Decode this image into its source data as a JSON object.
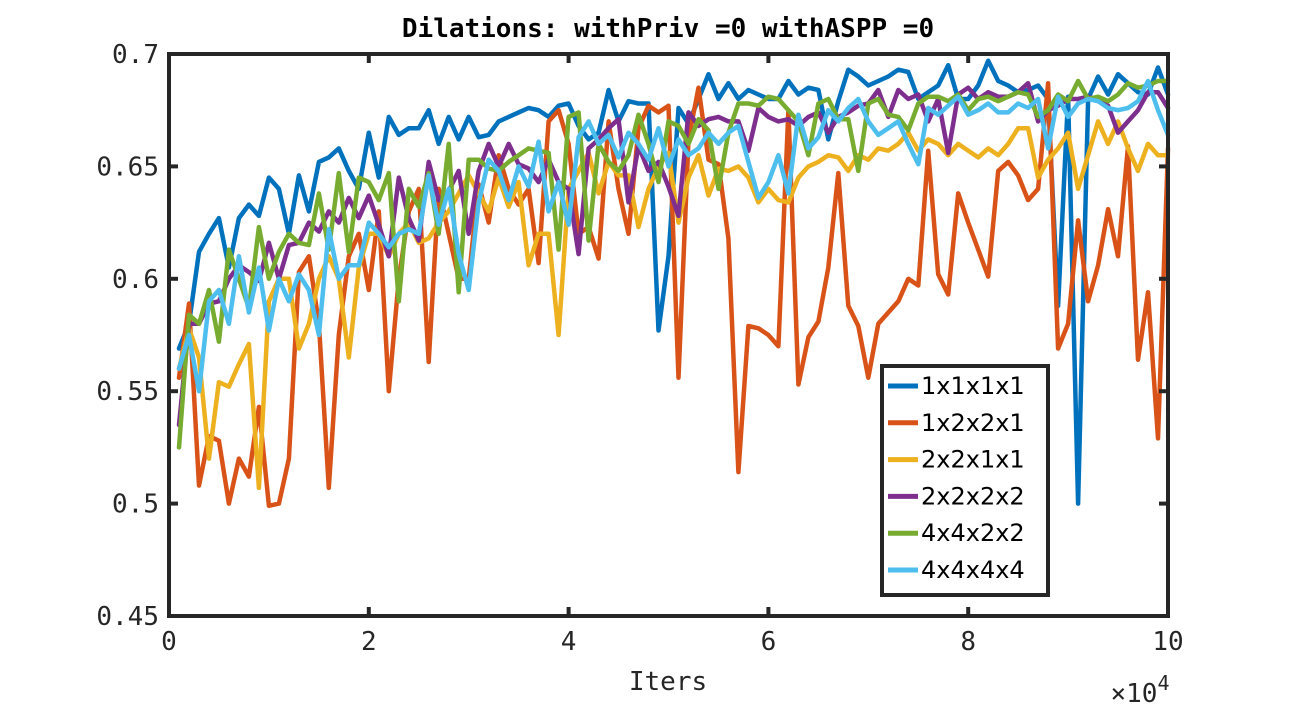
{
  "chart_data": {
    "type": "line",
    "title": "Dilations: withPriv =0 withASPP =0",
    "xlabel": "Iters",
    "ylabel": "",
    "x_multiplier": "×10",
    "x_multiplier_exp": "4",
    "xlim": [
      0,
      100000
    ],
    "ylim": [
      0.45,
      0.7
    ],
    "xticks": [
      0,
      20000,
      40000,
      60000,
      80000,
      100000
    ],
    "xtick_labels": [
      "0",
      "2",
      "4",
      "6",
      "8",
      "10"
    ],
    "yticks": [
      0.45,
      0.5,
      0.55,
      0.6,
      0.65,
      0.7
    ],
    "ytick_labels": [
      "0.45",
      "0.5",
      "0.55",
      "0.6",
      "0.65",
      "0.7"
    ],
    "grid": false,
    "legend_position": "bottom-right-inside",
    "x": [
      1000,
      2000,
      3000,
      4000,
      5000,
      6000,
      7000,
      8000,
      9000,
      10000,
      11000,
      12000,
      13000,
      14000,
      15000,
      16000,
      17000,
      18000,
      19000,
      20000,
      21000,
      22000,
      23000,
      24000,
      25000,
      26000,
      27000,
      28000,
      29000,
      30000,
      31000,
      32000,
      33000,
      34000,
      35000,
      36000,
      37000,
      38000,
      39000,
      40000,
      41000,
      42000,
      43000,
      44000,
      45000,
      46000,
      47000,
      48000,
      49000,
      50000,
      51000,
      52000,
      53000,
      54000,
      55000,
      56000,
      57000,
      58000,
      59000,
      60000,
      61000,
      62000,
      63000,
      64000,
      65000,
      66000,
      67000,
      68000,
      69000,
      70000,
      71000,
      72000,
      73000,
      74000,
      75000,
      76000,
      77000,
      78000,
      79000,
      80000,
      81000,
      82000,
      83000,
      84000,
      85000,
      86000,
      87000,
      88000,
      89000,
      90000,
      91000,
      92000,
      93000,
      94000,
      95000,
      96000,
      97000,
      98000,
      99000,
      100000
    ],
    "series": [
      {
        "name": "1x1x1x1",
        "color": "#0072BD",
        "values": [
          0.569,
          0.58,
          0.612,
          0.62,
          0.627,
          0.605,
          0.627,
          0.633,
          0.628,
          0.645,
          0.64,
          0.62,
          0.646,
          0.63,
          0.652,
          0.654,
          0.658,
          0.648,
          0.64,
          0.665,
          0.645,
          0.672,
          0.664,
          0.667,
          0.667,
          0.675,
          0.66,
          0.672,
          0.662,
          0.672,
          0.663,
          0.664,
          0.67,
          0.672,
          0.674,
          0.676,
          0.675,
          0.672,
          0.677,
          0.678,
          0.668,
          0.662,
          0.665,
          0.684,
          0.67,
          0.679,
          0.678,
          0.678,
          0.577,
          0.61,
          0.676,
          0.669,
          0.68,
          0.691,
          0.68,
          0.687,
          0.68,
          0.684,
          0.682,
          0.68,
          0.68,
          0.688,
          0.682,
          0.685,
          0.684,
          0.662,
          0.679,
          0.693,
          0.69,
          0.686,
          0.688,
          0.69,
          0.693,
          0.692,
          0.68,
          0.683,
          0.686,
          0.695,
          0.68,
          0.68,
          0.686,
          0.697,
          0.688,
          0.686,
          0.683,
          0.684,
          0.686,
          0.68,
          0.588,
          0.681,
          0.5,
          0.68,
          0.69,
          0.682,
          0.691,
          0.687,
          0.683,
          0.682,
          0.694,
          0.682
        ]
      },
      {
        "name": "1x2x2x1",
        "color": "#D95319",
        "values": [
          0.556,
          0.589,
          0.508,
          0.53,
          0.528,
          0.5,
          0.52,
          0.512,
          0.543,
          0.499,
          0.5,
          0.52,
          0.603,
          0.61,
          0.58,
          0.507,
          0.575,
          0.61,
          0.62,
          0.595,
          0.63,
          0.55,
          0.6,
          0.63,
          0.64,
          0.563,
          0.64,
          0.62,
          0.6,
          0.6,
          0.642,
          0.625,
          0.655,
          0.64,
          0.633,
          0.64,
          0.607,
          0.67,
          0.675,
          0.66,
          0.62,
          0.623,
          0.609,
          0.67,
          0.64,
          0.62,
          0.667,
          0.677,
          0.674,
          0.677,
          0.556,
          0.662,
          0.685,
          0.653,
          0.651,
          0.618,
          0.514,
          0.579,
          0.578,
          0.575,
          0.57,
          0.675,
          0.553,
          0.574,
          0.581,
          0.605,
          0.647,
          0.588,
          0.579,
          0.556,
          0.58,
          0.585,
          0.59,
          0.6,
          0.597,
          0.657,
          0.602,
          0.593,
          0.638,
          0.625,
          0.613,
          0.601,
          0.648,
          0.652,
          0.646,
          0.635,
          0.64,
          0.687,
          0.569,
          0.58,
          0.626,
          0.59,
          0.606,
          0.631,
          0.61,
          0.659,
          0.564,
          0.594,
          0.529,
          0.658
        ]
      },
      {
        "name": "2x2x1x1",
        "color": "#EDB120",
        "values": [
          0.56,
          0.578,
          0.565,
          0.52,
          0.554,
          0.552,
          0.562,
          0.571,
          0.507,
          0.59,
          0.6,
          0.6,
          0.569,
          0.58,
          0.6,
          0.61,
          0.6,
          0.565,
          0.605,
          0.62,
          0.62,
          0.61,
          0.62,
          0.625,
          0.616,
          0.618,
          0.625,
          0.63,
          0.638,
          0.646,
          0.638,
          0.63,
          0.645,
          0.632,
          0.643,
          0.606,
          0.62,
          0.62,
          0.575,
          0.64,
          0.648,
          0.656,
          0.638,
          0.652,
          0.646,
          0.646,
          0.623,
          0.64,
          0.65,
          0.656,
          0.625,
          0.645,
          0.655,
          0.637,
          0.649,
          0.648,
          0.65,
          0.645,
          0.634,
          0.64,
          0.635,
          0.634,
          0.645,
          0.65,
          0.652,
          0.655,
          0.654,
          0.648,
          0.655,
          0.653,
          0.658,
          0.657,
          0.66,
          0.665,
          0.657,
          0.662,
          0.66,
          0.655,
          0.66,
          0.657,
          0.654,
          0.658,
          0.655,
          0.66,
          0.667,
          0.667,
          0.645,
          0.653,
          0.658,
          0.665,
          0.64,
          0.655,
          0.67,
          0.66,
          0.67,
          0.658,
          0.648,
          0.66,
          0.655,
          0.655
        ]
      },
      {
        "name": "2x2x2x2",
        "color": "#7E2F8E",
        "values": [
          0.535,
          0.58,
          0.58,
          0.589,
          0.59,
          0.6,
          0.606,
          0.603,
          0.599,
          0.616,
          0.6,
          0.615,
          0.616,
          0.625,
          0.621,
          0.63,
          0.625,
          0.636,
          0.627,
          0.637,
          0.624,
          0.61,
          0.645,
          0.627,
          0.617,
          0.652,
          0.635,
          0.639,
          0.648,
          0.62,
          0.648,
          0.66,
          0.65,
          0.66,
          0.651,
          0.649,
          0.643,
          0.653,
          0.643,
          0.64,
          0.611,
          0.658,
          0.662,
          0.667,
          0.671,
          0.634,
          0.659,
          0.648,
          0.652,
          0.641,
          0.628,
          0.674,
          0.668,
          0.671,
          0.672,
          0.67,
          0.67,
          0.657,
          0.676,
          0.672,
          0.67,
          0.671,
          0.668,
          0.672,
          0.674,
          0.665,
          0.672,
          0.674,
          0.677,
          0.678,
          0.684,
          0.672,
          0.684,
          0.68,
          0.682,
          0.67,
          0.68,
          0.656,
          0.682,
          0.685,
          0.68,
          0.683,
          0.681,
          0.681,
          0.683,
          0.687,
          0.67,
          0.675,
          0.677,
          0.68,
          0.68,
          0.681,
          0.679,
          0.677,
          0.665,
          0.67,
          0.675,
          0.683,
          0.683,
          0.676
        ]
      },
      {
        "name": "4x4x2x2",
        "color": "#77AC30",
        "values": [
          0.525,
          0.584,
          0.58,
          0.595,
          0.572,
          0.613,
          0.6,
          0.587,
          0.623,
          0.6,
          0.612,
          0.62,
          0.616,
          0.615,
          0.638,
          0.613,
          0.647,
          0.612,
          0.645,
          0.643,
          0.635,
          0.647,
          0.59,
          0.64,
          0.632,
          0.647,
          0.62,
          0.66,
          0.594,
          0.653,
          0.653,
          0.649,
          0.648,
          0.652,
          0.655,
          0.658,
          0.657,
          0.656,
          0.613,
          0.672,
          0.674,
          0.617,
          0.66,
          0.652,
          0.648,
          0.655,
          0.673,
          0.66,
          0.643,
          0.67,
          0.668,
          0.66,
          0.671,
          0.666,
          0.64,
          0.665,
          0.678,
          0.678,
          0.677,
          0.681,
          0.68,
          0.675,
          0.67,
          0.655,
          0.678,
          0.68,
          0.671,
          0.671,
          0.648,
          0.678,
          0.68,
          0.673,
          0.672,
          0.666,
          0.678,
          0.681,
          0.681,
          0.679,
          0.682,
          0.675,
          0.68,
          0.681,
          0.679,
          0.681,
          0.683,
          0.682,
          0.672,
          0.675,
          0.682,
          0.679,
          0.688,
          0.68,
          0.681,
          0.679,
          0.682,
          0.687,
          0.685,
          0.686,
          0.688,
          0.688
        ]
      },
      {
        "name": "4x4x4x4",
        "color": "#4DBEEE",
        "values": [
          0.56,
          0.575,
          0.55,
          0.59,
          0.595,
          0.58,
          0.61,
          0.585,
          0.605,
          0.577,
          0.6,
          0.59,
          0.602,
          0.595,
          0.575,
          0.622,
          0.6,
          0.606,
          0.606,
          0.625,
          0.62,
          0.614,
          0.62,
          0.622,
          0.62,
          0.646,
          0.624,
          0.64,
          0.611,
          0.595,
          0.634,
          0.653,
          0.648,
          0.635,
          0.65,
          0.641,
          0.661,
          0.63,
          0.643,
          0.624,
          0.663,
          0.67,
          0.66,
          0.664,
          0.654,
          0.665,
          0.66,
          0.653,
          0.667,
          0.65,
          0.662,
          0.655,
          0.658,
          0.665,
          0.66,
          0.665,
          0.668,
          0.652,
          0.636,
          0.643,
          0.655,
          0.638,
          0.673,
          0.658,
          0.663,
          0.675,
          0.67,
          0.676,
          0.68,
          0.67,
          0.664,
          0.667,
          0.67,
          0.66,
          0.651,
          0.676,
          0.673,
          0.677,
          0.681,
          0.673,
          0.675,
          0.678,
          0.674,
          0.674,
          0.678,
          0.676,
          0.68,
          0.658,
          0.681,
          0.672,
          0.678,
          0.68,
          0.679,
          0.676,
          0.675,
          0.676,
          0.679,
          0.688,
          0.675,
          0.664
        ]
      }
    ]
  }
}
